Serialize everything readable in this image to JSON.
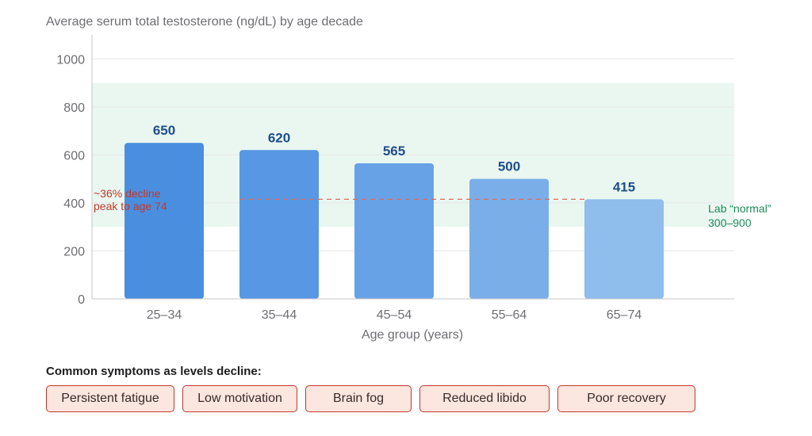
{
  "chart_data": {
    "type": "bar",
    "title": "Average serum total testosterone (ng/dL) by age decade",
    "xlabel": "Age group (years)",
    "ylabel": "",
    "categories": [
      "25–34",
      "35–44",
      "45–54",
      "55–64",
      "65–74"
    ],
    "values": [
      650,
      620,
      565,
      500,
      415
    ],
    "value_labels": [
      "650",
      "620",
      "565",
      "500",
      "415"
    ],
    "ylim": [
      0,
      1100
    ],
    "yticks": [
      0,
      200,
      400,
      600,
      800,
      1000
    ],
    "grid": true,
    "bar_colors": [
      "#4a8ee0",
      "#5797e3",
      "#68a2e6",
      "#7aaee9",
      "#8fbdec"
    ],
    "reference_band": {
      "range": [
        300,
        900
      ],
      "label_line1": "Lab “normal”",
      "label_line2": "300–900",
      "color": "#1e8a5a"
    },
    "reference_line": {
      "value": 415,
      "from_category": 1,
      "label_line1": "~36% decline",
      "label_line2": "peak to age 74",
      "color": "#c0392b"
    }
  },
  "symptoms": {
    "title": "Common symptoms as levels decline:",
    "items": [
      "Persistent fatigue",
      "Low motivation",
      "Brain fog",
      "Reduced libido",
      "Poor recovery"
    ]
  }
}
